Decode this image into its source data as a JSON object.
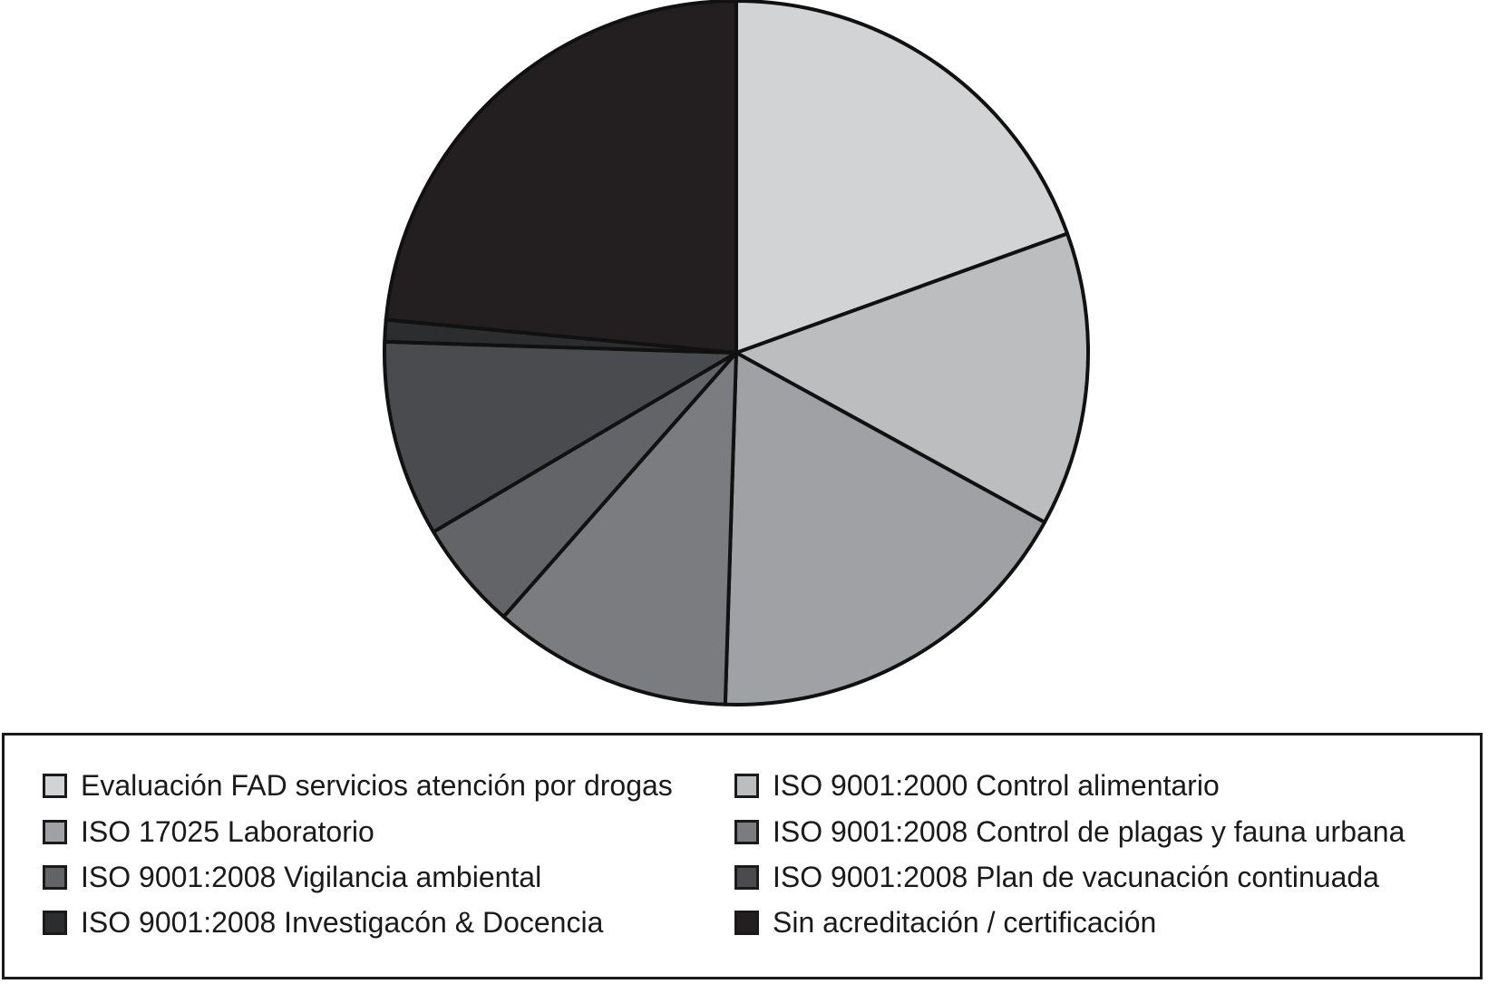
{
  "chart_data": {
    "type": "pie",
    "title": "",
    "slices": [
      {
        "label": "Evaluación FAD servicios atención por drogas",
        "value": 19.5,
        "color": "#d2d3d5"
      },
      {
        "label": "ISO 9001:2000 Control alimentario",
        "value": 13.5,
        "color": "#bcbdbf"
      },
      {
        "label": "ISO 17025 Laboratorio",
        "value": 17.5,
        "color": "#a0a1a4"
      },
      {
        "label": "ISO 9001:2008 Control de plagas y fauna urbana",
        "value": 11.0,
        "color": "#7b7c80"
      },
      {
        "label": "ISO 9001:2008 Vigilancia ambiental",
        "value": 5.0,
        "color": "#636467"
      },
      {
        "label": "ISO 9001:2008 Plan de vacunación continuada",
        "value": 9.0,
        "color": "#4a4b4e"
      },
      {
        "label": "ISO 9001:2008 Investigacón & Docencia",
        "value": 1.0,
        "color": "#2c2d2f"
      },
      {
        "label": "Sin acreditación / certificación",
        "value": 23.5,
        "color": "#231f20"
      }
    ],
    "legend": {
      "position": "bottom",
      "columns": 2
    }
  }
}
